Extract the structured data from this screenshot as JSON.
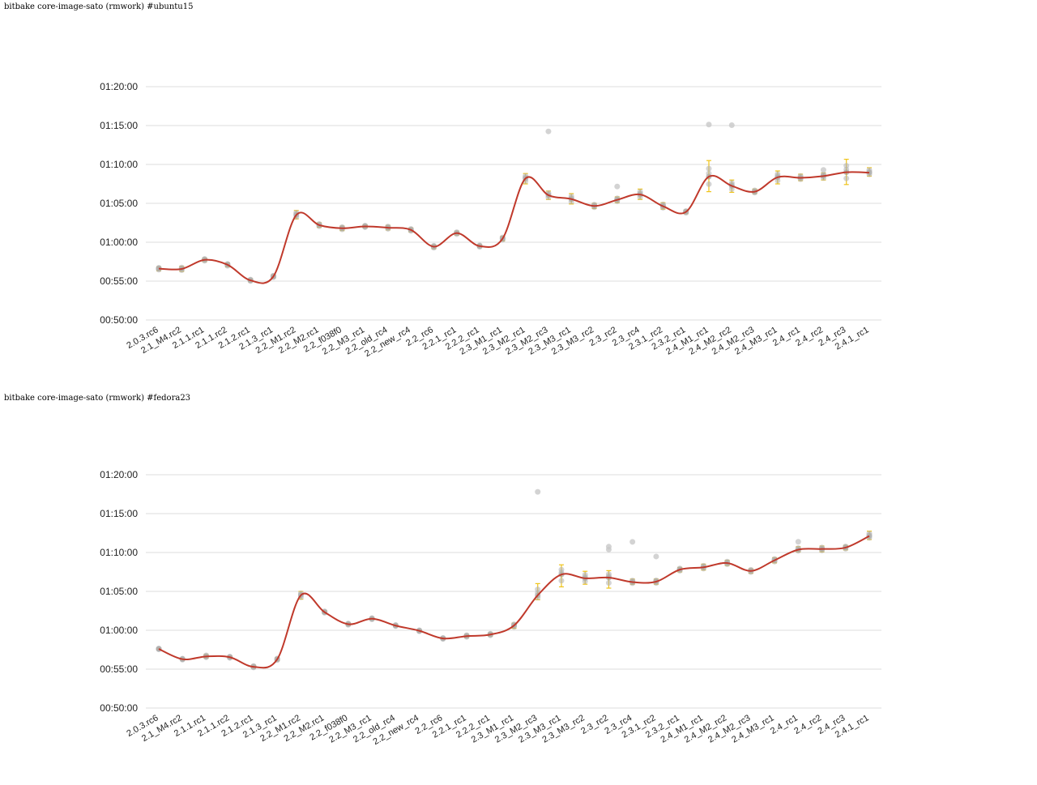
{
  "chart_data": [
    {
      "type": "line",
      "title": "bitbake core-image-sato (rmwork) #ubuntu15",
      "xlabel": "",
      "ylabel": "",
      "y_unit": "seconds",
      "y_tick_labels": [
        "00:50:00",
        "00:55:00",
        "01:00:00",
        "01:05:00",
        "01:10:00",
        "01:15:00",
        "01:20:00"
      ],
      "y_tick_values": [
        3000,
        3300,
        3600,
        3900,
        4200,
        4500,
        4800
      ],
      "ylim": [
        3000,
        4800
      ],
      "grid": true,
      "categories": [
        "2.0.3.rc6",
        "2.1_M4.rc2",
        "2.1.1.rc1",
        "2.1.1.rc2",
        "2.1.2.rc1",
        "2.1.3_rc1",
        "2.2_M1.rc2",
        "2.2_M2.rc1",
        "2.2_f038f0",
        "2.2_M3_rc1",
        "2.2_old_rc4",
        "2.2_new_rc4",
        "2.2_rc6",
        "2.2.1_rc1",
        "2.2.2_rc1",
        "2.3_M1_rc1",
        "2.3_M2_rc1",
        "2.3_M2_rc3",
        "2.3_M3_rc1",
        "2.3_M3_rc2",
        "2.3_rc2",
        "2.3_rc4",
        "2.3.1_rc2",
        "2.3.2_rc1",
        "2.4_M1_rc1",
        "2.4_M2_rc2",
        "2.4_M2_rc3",
        "2.4_M3_rc1",
        "2.4_rc1",
        "2.4_rc2",
        "2.4_rc3",
        "2.4.1_rc1"
      ],
      "series": [
        {
          "color": "#c0392b",
          "values": [
            3396,
            3394,
            3464,
            3426,
            3306,
            3336,
            3810,
            3732,
            3708,
            3722,
            3712,
            3695,
            3566,
            3670,
            3570,
            3628,
            4092,
            3963,
            3933,
            3880,
            3927,
            3968,
            3878,
            3834,
            4106,
            4035,
            3990,
            4101,
            4097,
            4110,
            4140,
            4137
          ]
        }
      ],
      "error_bar_color": "#f0c419",
      "error_bars": [
        [
          3380,
          3410
        ],
        [
          3375,
          3415
        ],
        [
          3450,
          3478
        ],
        [
          3410,
          3440
        ],
        [
          3295,
          3318
        ],
        [
          3325,
          3348
        ],
        [
          3780,
          3845
        ],
        [
          3715,
          3750
        ],
        [
          3690,
          3725
        ],
        [
          3710,
          3735
        ],
        [
          3695,
          3730
        ],
        [
          3680,
          3710
        ],
        [
          3550,
          3580
        ],
        [
          3655,
          3685
        ],
        [
          3560,
          3582
        ],
        [
          3610,
          3645
        ],
        [
          4050,
          4130
        ],
        [
          3930,
          3995
        ],
        [
          3895,
          3975
        ],
        [
          3860,
          3900
        ],
        [
          3905,
          3950
        ],
        [
          3930,
          4010
        ],
        [
          3855,
          3905
        ],
        [
          3820,
          3848
        ],
        [
          3990,
          4230
        ],
        [
          3985,
          4080
        ],
        [
          3975,
          4010
        ],
        [
          4050,
          4150
        ],
        [
          4075,
          4125
        ],
        [
          4080,
          4135
        ],
        [
          4045,
          4240
        ],
        [
          4110,
          4175
        ]
      ],
      "point_color": "#999999",
      "outliers": [
        [
          17,
          4455
        ],
        [
          24,
          4508
        ],
        [
          25,
          4503
        ],
        [
          20,
          4030
        ],
        [
          29,
          4158
        ]
      ]
    },
    {
      "type": "line",
      "title": "bitbake core-image-sato (rmwork) #fedora23",
      "xlabel": "",
      "ylabel": "",
      "y_unit": "seconds",
      "y_tick_labels": [
        "00:50:00",
        "00:55:00",
        "01:00:00",
        "01:05:00",
        "01:10:00",
        "01:15:00",
        "01:20:00"
      ],
      "y_tick_values": [
        3000,
        3300,
        3600,
        3900,
        4200,
        4500,
        4800
      ],
      "ylim": [
        3000,
        4800
      ],
      "grid": true,
      "categories": [
        "2.0.3.rc6",
        "2.1_M4.rc2",
        "2.1.1.rc1",
        "2.1.1.rc2",
        "2.1.2.rc1",
        "2.1.3_rc1",
        "2.2_M1.rc2",
        "2.2_M2.rc1",
        "2.2_f038f0",
        "2.2_M3_rc1",
        "2.2_old_rc4",
        "2.2_new_rc4",
        "2.2_rc6",
        "2.2.1_rc1",
        "2.2.2_rc1",
        "2.3_M1_rc1",
        "2.3_M2_rc3",
        "2.3_M3_rc1",
        "2.3_M3_rc2",
        "2.3_rc2",
        "2.3_rc4",
        "2.3.1_rc2",
        "2.3.2_rc1",
        "2.4_M1_rc1",
        "2.4_M2_rc2",
        "2.4_M2_rc3",
        "2.4_M3_rc1",
        "2.4_rc1",
        "2.4_rc2",
        "2.4_rc3",
        "2.4.1_rc1"
      ],
      "series": [
        {
          "color": "#c0392b",
          "values": [
            3456,
            3377,
            3398,
            3392,
            3318,
            3376,
            3870,
            3740,
            3647,
            3689,
            3636,
            3596,
            3537,
            3555,
            3567,
            3637,
            3870,
            4030,
            4001,
            4006,
            3972,
            3975,
            4068,
            4086,
            4119,
            4058,
            4140,
            4222,
            4227,
            4238,
            4327
          ]
        }
      ],
      "error_bar_color": "#f0c419",
      "error_bars": [
        [
          3450,
          3462
        ],
        [
          3370,
          3385
        ],
        [
          3385,
          3415
        ],
        [
          3382,
          3402
        ],
        [
          3308,
          3330
        ],
        [
          3365,
          3388
        ],
        [
          3840,
          3900
        ],
        [
          3730,
          3752
        ],
        [
          3637,
          3657
        ],
        [
          3680,
          3698
        ],
        [
          3628,
          3645
        ],
        [
          3588,
          3604
        ],
        [
          3530,
          3545
        ],
        [
          3543,
          3568
        ],
        [
          3555,
          3580
        ],
        [
          3615,
          3655
        ],
        [
          3835,
          3960
        ],
        [
          3935,
          4105
        ],
        [
          3955,
          4055
        ],
        [
          3925,
          4060
        ],
        [
          3955,
          3995
        ],
        [
          3955,
          3995
        ],
        [
          4050,
          4085
        ],
        [
          4065,
          4110
        ],
        [
          4100,
          4140
        ],
        [
          4040,
          4075
        ],
        [
          4120,
          4160
        ],
        [
          4205,
          4245
        ],
        [
          4205,
          4250
        ],
        [
          4220,
          4255
        ],
        [
          4300,
          4365
        ]
      ],
      "point_color": "#999999",
      "outliers": [
        [
          16,
          4668
        ],
        [
          19,
          4245
        ],
        [
          20,
          4282
        ],
        [
          21,
          4169
        ],
        [
          27,
          4283
        ],
        [
          19,
          4223
        ]
      ]
    }
  ]
}
